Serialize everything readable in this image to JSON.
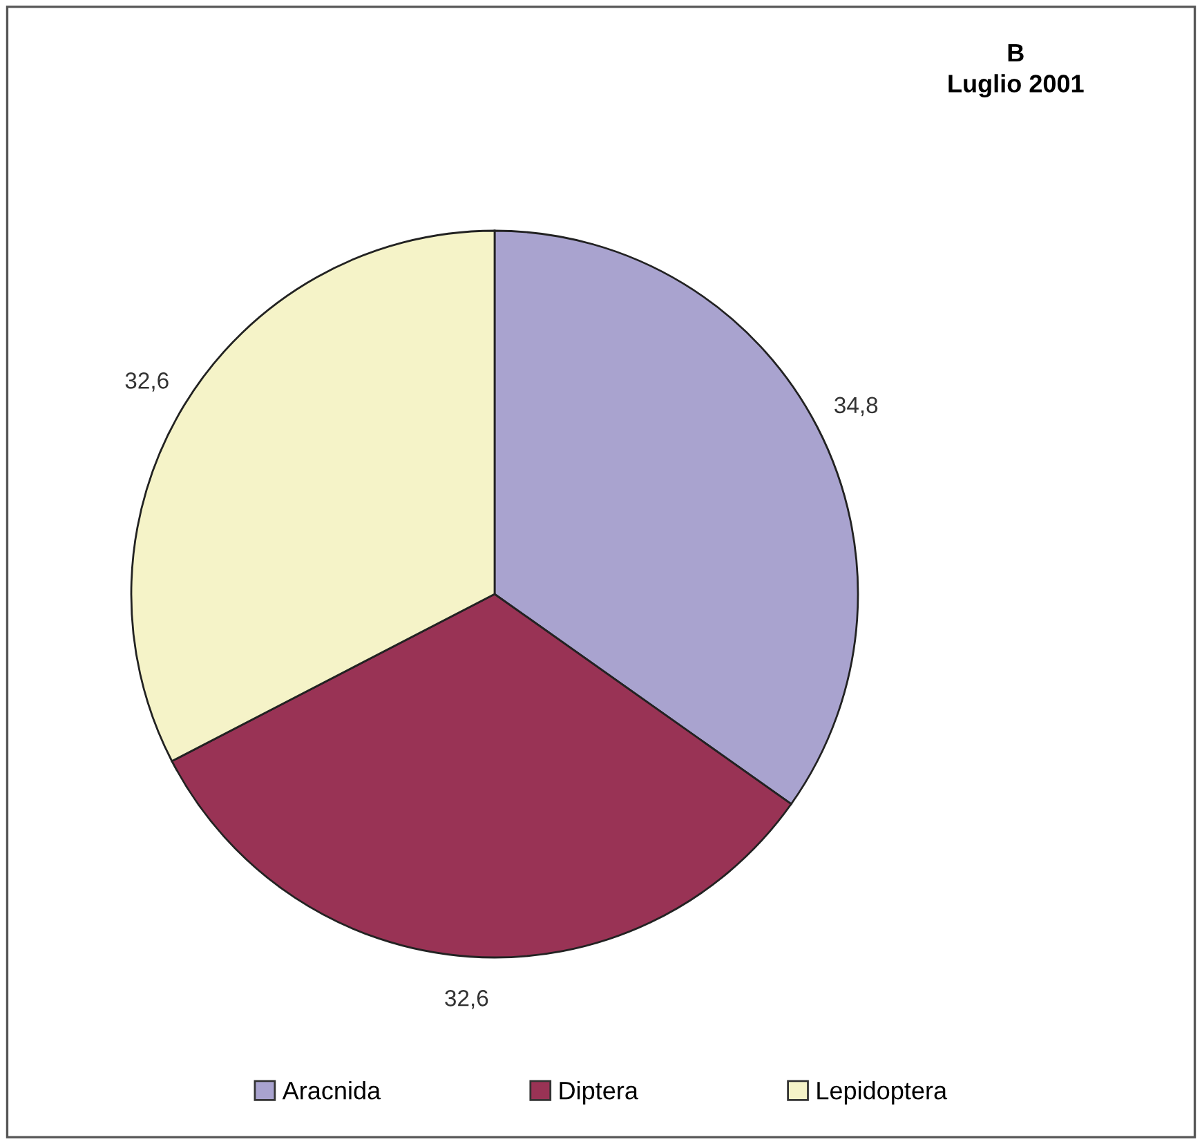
{
  "chart_data": {
    "type": "pie",
    "title": "B",
    "subtitle": "Luglio 2001",
    "categories": [
      "Aracnida",
      "Diptera",
      "Lepidoptera"
    ],
    "values": [
      34.8,
      32.6,
      32.6
    ],
    "value_labels": [
      "34,8",
      "32,6",
      "32,6"
    ],
    "colors": [
      "#a9a3cf",
      "#993355",
      "#f5f3c8"
    ],
    "legend": "bottom"
  }
}
